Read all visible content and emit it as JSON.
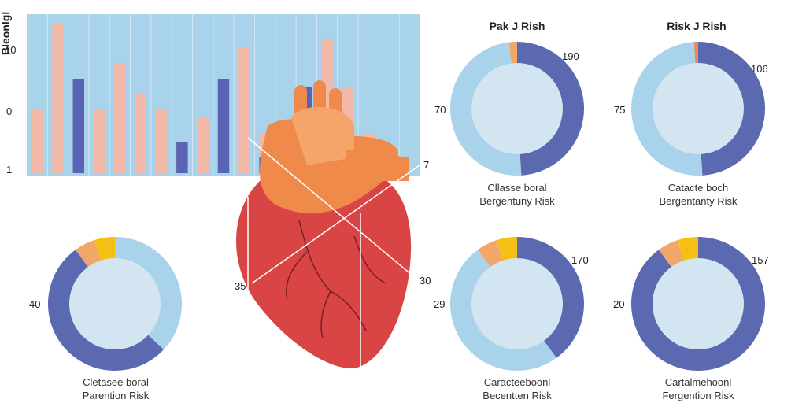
{
  "chart_data": [
    {
      "type": "bar",
      "ylabel": "Bleonlgl",
      "yticks": [
        "10",
        "0",
        "1"
      ],
      "series": [
        {
          "color": "#f2b8a8",
          "values": [
            4,
            9.5,
            0,
            4,
            7,
            5,
            4,
            2,
            3.5,
            0,
            8,
            2.5,
            2,
            0,
            8.5,
            5.5,
            2.5,
            0,
            0
          ]
        },
        {
          "color": "#5a64b4",
          "values": [
            0,
            0,
            6,
            0,
            0,
            0,
            0,
            2,
            0,
            6,
            0,
            1,
            0,
            5.5,
            0,
            0,
            0,
            0,
            0
          ]
        }
      ],
      "background": "#a9d3ea"
    },
    {
      "type": "pie",
      "title": "Pak J Rish",
      "labels": {
        "left": "70",
        "right": "190"
      },
      "caption": [
        "Cllasse boral",
        "Bergentuny Risk"
      ],
      "slices": [
        {
          "value": 49,
          "color": "#5a69b0"
        },
        {
          "value": 49,
          "color": "#a9d3ea"
        },
        {
          "value": 2,
          "color": "#f2a76a"
        }
      ]
    },
    {
      "type": "pie",
      "title": "Risk J Rish",
      "labels": {
        "left": "75",
        "right": "106"
      },
      "caption": [
        "Catacte boch",
        "Bergentanty Risk"
      ],
      "slices": [
        {
          "value": 49,
          "color": "#5a69b0"
        },
        {
          "value": 50,
          "color": "#a9d3ea"
        },
        {
          "value": 1,
          "color": "#e88a5a"
        }
      ]
    },
    {
      "type": "pie",
      "title": "",
      "labels": {
        "left": "40",
        "right": ""
      },
      "caption": [
        "Cletasee boral",
        "Parention Risk"
      ],
      "slices": [
        {
          "value": 37,
          "color": "#a9d3ea"
        },
        {
          "value": 53,
          "color": "#5a69b0"
        },
        {
          "value": 5,
          "color": "#f2a76a"
        },
        {
          "value": 5,
          "color": "#f5c013"
        }
      ]
    },
    {
      "type": "pie",
      "title": "",
      "labels": {
        "left": "29",
        "right": "170"
      },
      "caption": [
        "Caracteeboonl",
        "Becentten Risk"
      ],
      "slices": [
        {
          "value": 40,
          "color": "#5a69b0"
        },
        {
          "value": 50,
          "color": "#a9d3ea"
        },
        {
          "value": 5,
          "color": "#f2a76a"
        },
        {
          "value": 5,
          "color": "#f5c013"
        }
      ]
    },
    {
      "type": "pie",
      "title": "",
      "labels": {
        "left": "20",
        "right": "157"
      },
      "caption": [
        "Cartalmehoonl",
        "Fergention Risk"
      ],
      "slices": [
        {
          "value": 90,
          "color": "#5a69b0"
        },
        {
          "value": 5,
          "color": "#f2a76a"
        },
        {
          "value": 5,
          "color": "#f5c013"
        }
      ]
    }
  ],
  "heart": {
    "labels": {
      "left": "35",
      "right": "30",
      "top": "7"
    },
    "colors": {
      "ventricle": "#d94444",
      "atrium": "#f08a4b",
      "vessel": "#f5a56a",
      "highlight": "#f7b27a"
    }
  }
}
